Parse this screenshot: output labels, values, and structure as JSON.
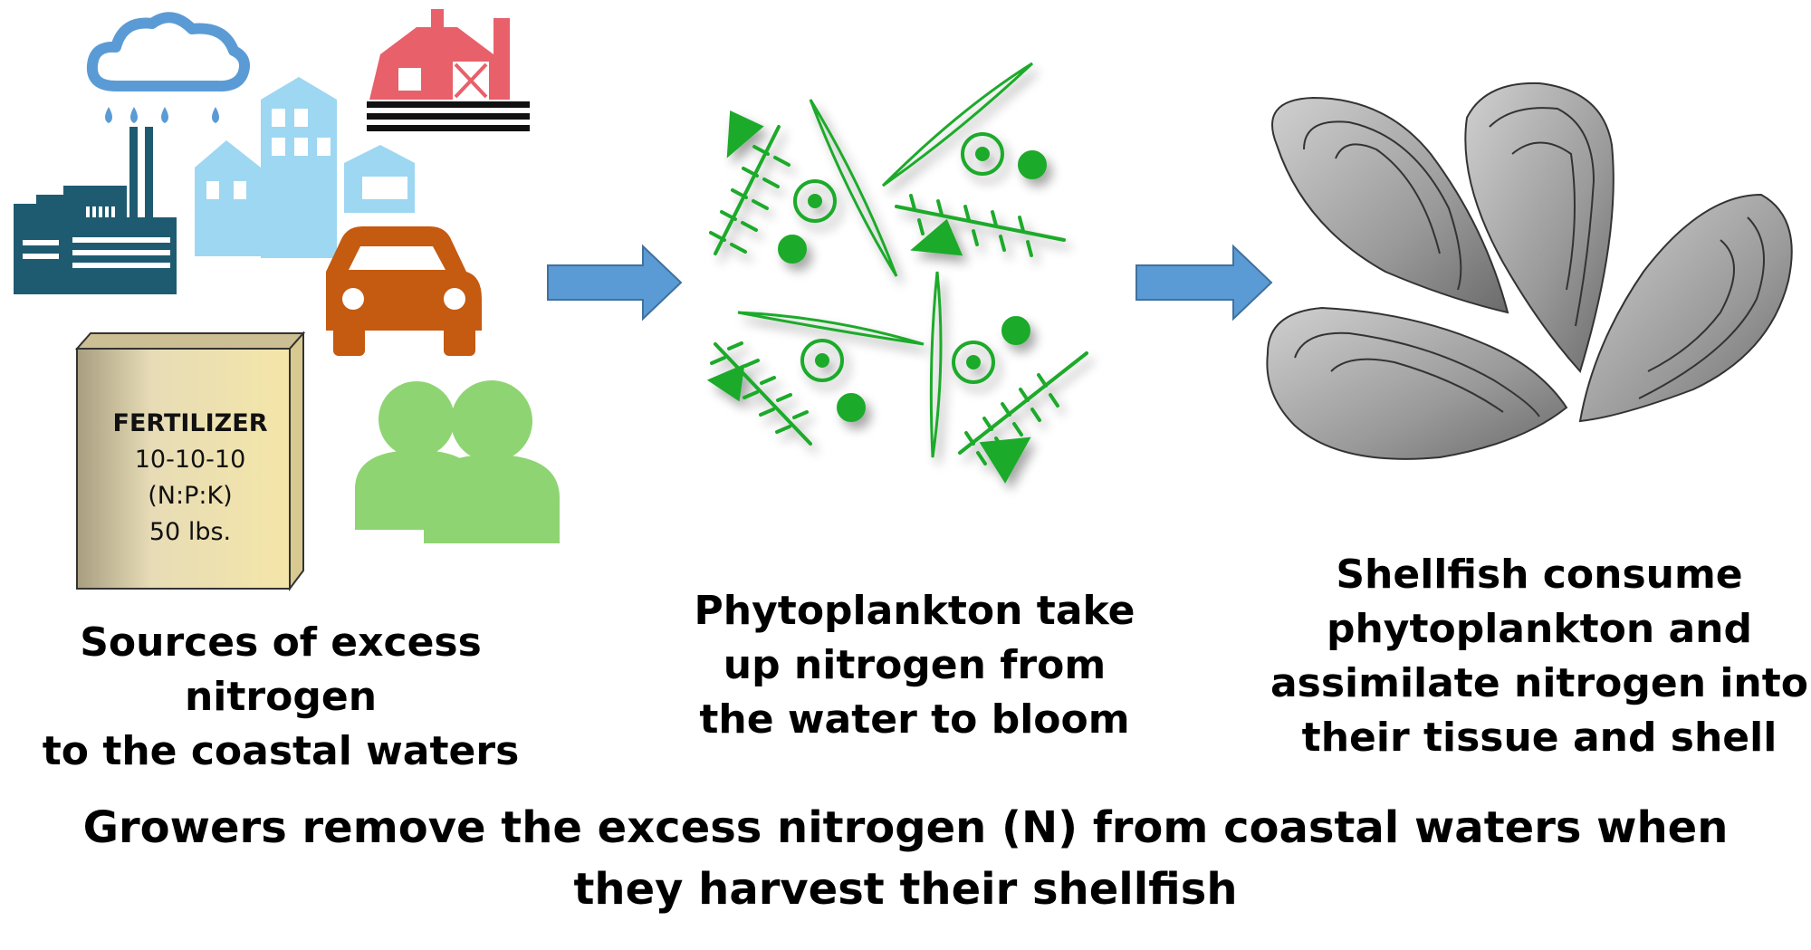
{
  "colors": {
    "cloud": "#5b9bd5",
    "factory": "#1f5b70",
    "houses": "#9dd7f2",
    "barn": "#e8606a",
    "car": "#c55a11",
    "people": "#8fd472",
    "bag": "#e8d8a0",
    "arrow": "#5b9bd5",
    "plankton": "#1faa2a",
    "oyster": "#9a9a9a"
  },
  "icons": [
    "rain-cloud-icon",
    "factory-icon",
    "houses-icon",
    "barn-icon",
    "car-icon",
    "people-icon",
    "fertilizer-bag-icon",
    "arrow-right-icon",
    "phytoplankton-icon",
    "oyster-icon"
  ],
  "fertilizer": {
    "title": "FERTILIZER",
    "ratio": "10-10-10",
    "npk": "(N:P:K)",
    "weight": "50 lbs."
  },
  "captions": {
    "sources": [
      "Sources of excess nitrogen",
      "to the coastal waters"
    ],
    "phytoplankton": [
      "Phytoplankton take",
      "up nitrogen from",
      "the water to bloom"
    ],
    "shellfish": [
      "Shellfish consume",
      "phytoplankton and",
      "assimilate nitrogen into",
      "their tissue and shell"
    ],
    "bottom": [
      "Growers remove the excess nitrogen (N) from coastal waters when",
      "they harvest their shellfish"
    ]
  }
}
